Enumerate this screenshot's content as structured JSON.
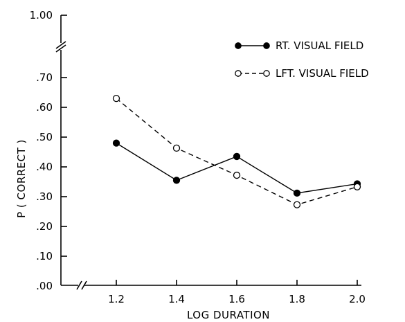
{
  "chart_data": {
    "type": "line",
    "title": "",
    "xlabel": "LOG DURATION",
    "ylabel": "P ( CORRECT )",
    "x": [
      1.2,
      1.4,
      1.6,
      1.8,
      2.0
    ],
    "x_tick_labels": [
      "1.2",
      "1.4",
      "1.6",
      "1.8",
      "2.0"
    ],
    "y_tick_values": [
      0.0,
      0.1,
      0.2,
      0.3,
      0.4,
      0.5,
      0.6,
      0.7
    ],
    "y_tick_labels": [
      ".00",
      ".10",
      ".20",
      ".30",
      ".40",
      ".50",
      ".60",
      ".70"
    ],
    "y_break_tick": {
      "value": 1.0,
      "label": "1.00"
    },
    "ylim": [
      0.0,
      0.75
    ],
    "axis_breaks": {
      "x": true,
      "y": true
    },
    "grid": false,
    "legend_position": "top-right",
    "series": [
      {
        "name": "RT. VISUAL FIELD",
        "values": [
          0.48,
          0.355,
          0.435,
          0.312,
          0.343
        ],
        "marker": "filled-circle",
        "line": "solid"
      },
      {
        "name": "LFT. VISUAL FIELD",
        "values": [
          0.63,
          0.463,
          0.372,
          0.273,
          0.333
        ],
        "marker": "open-circle",
        "line": "dashed"
      }
    ]
  }
}
